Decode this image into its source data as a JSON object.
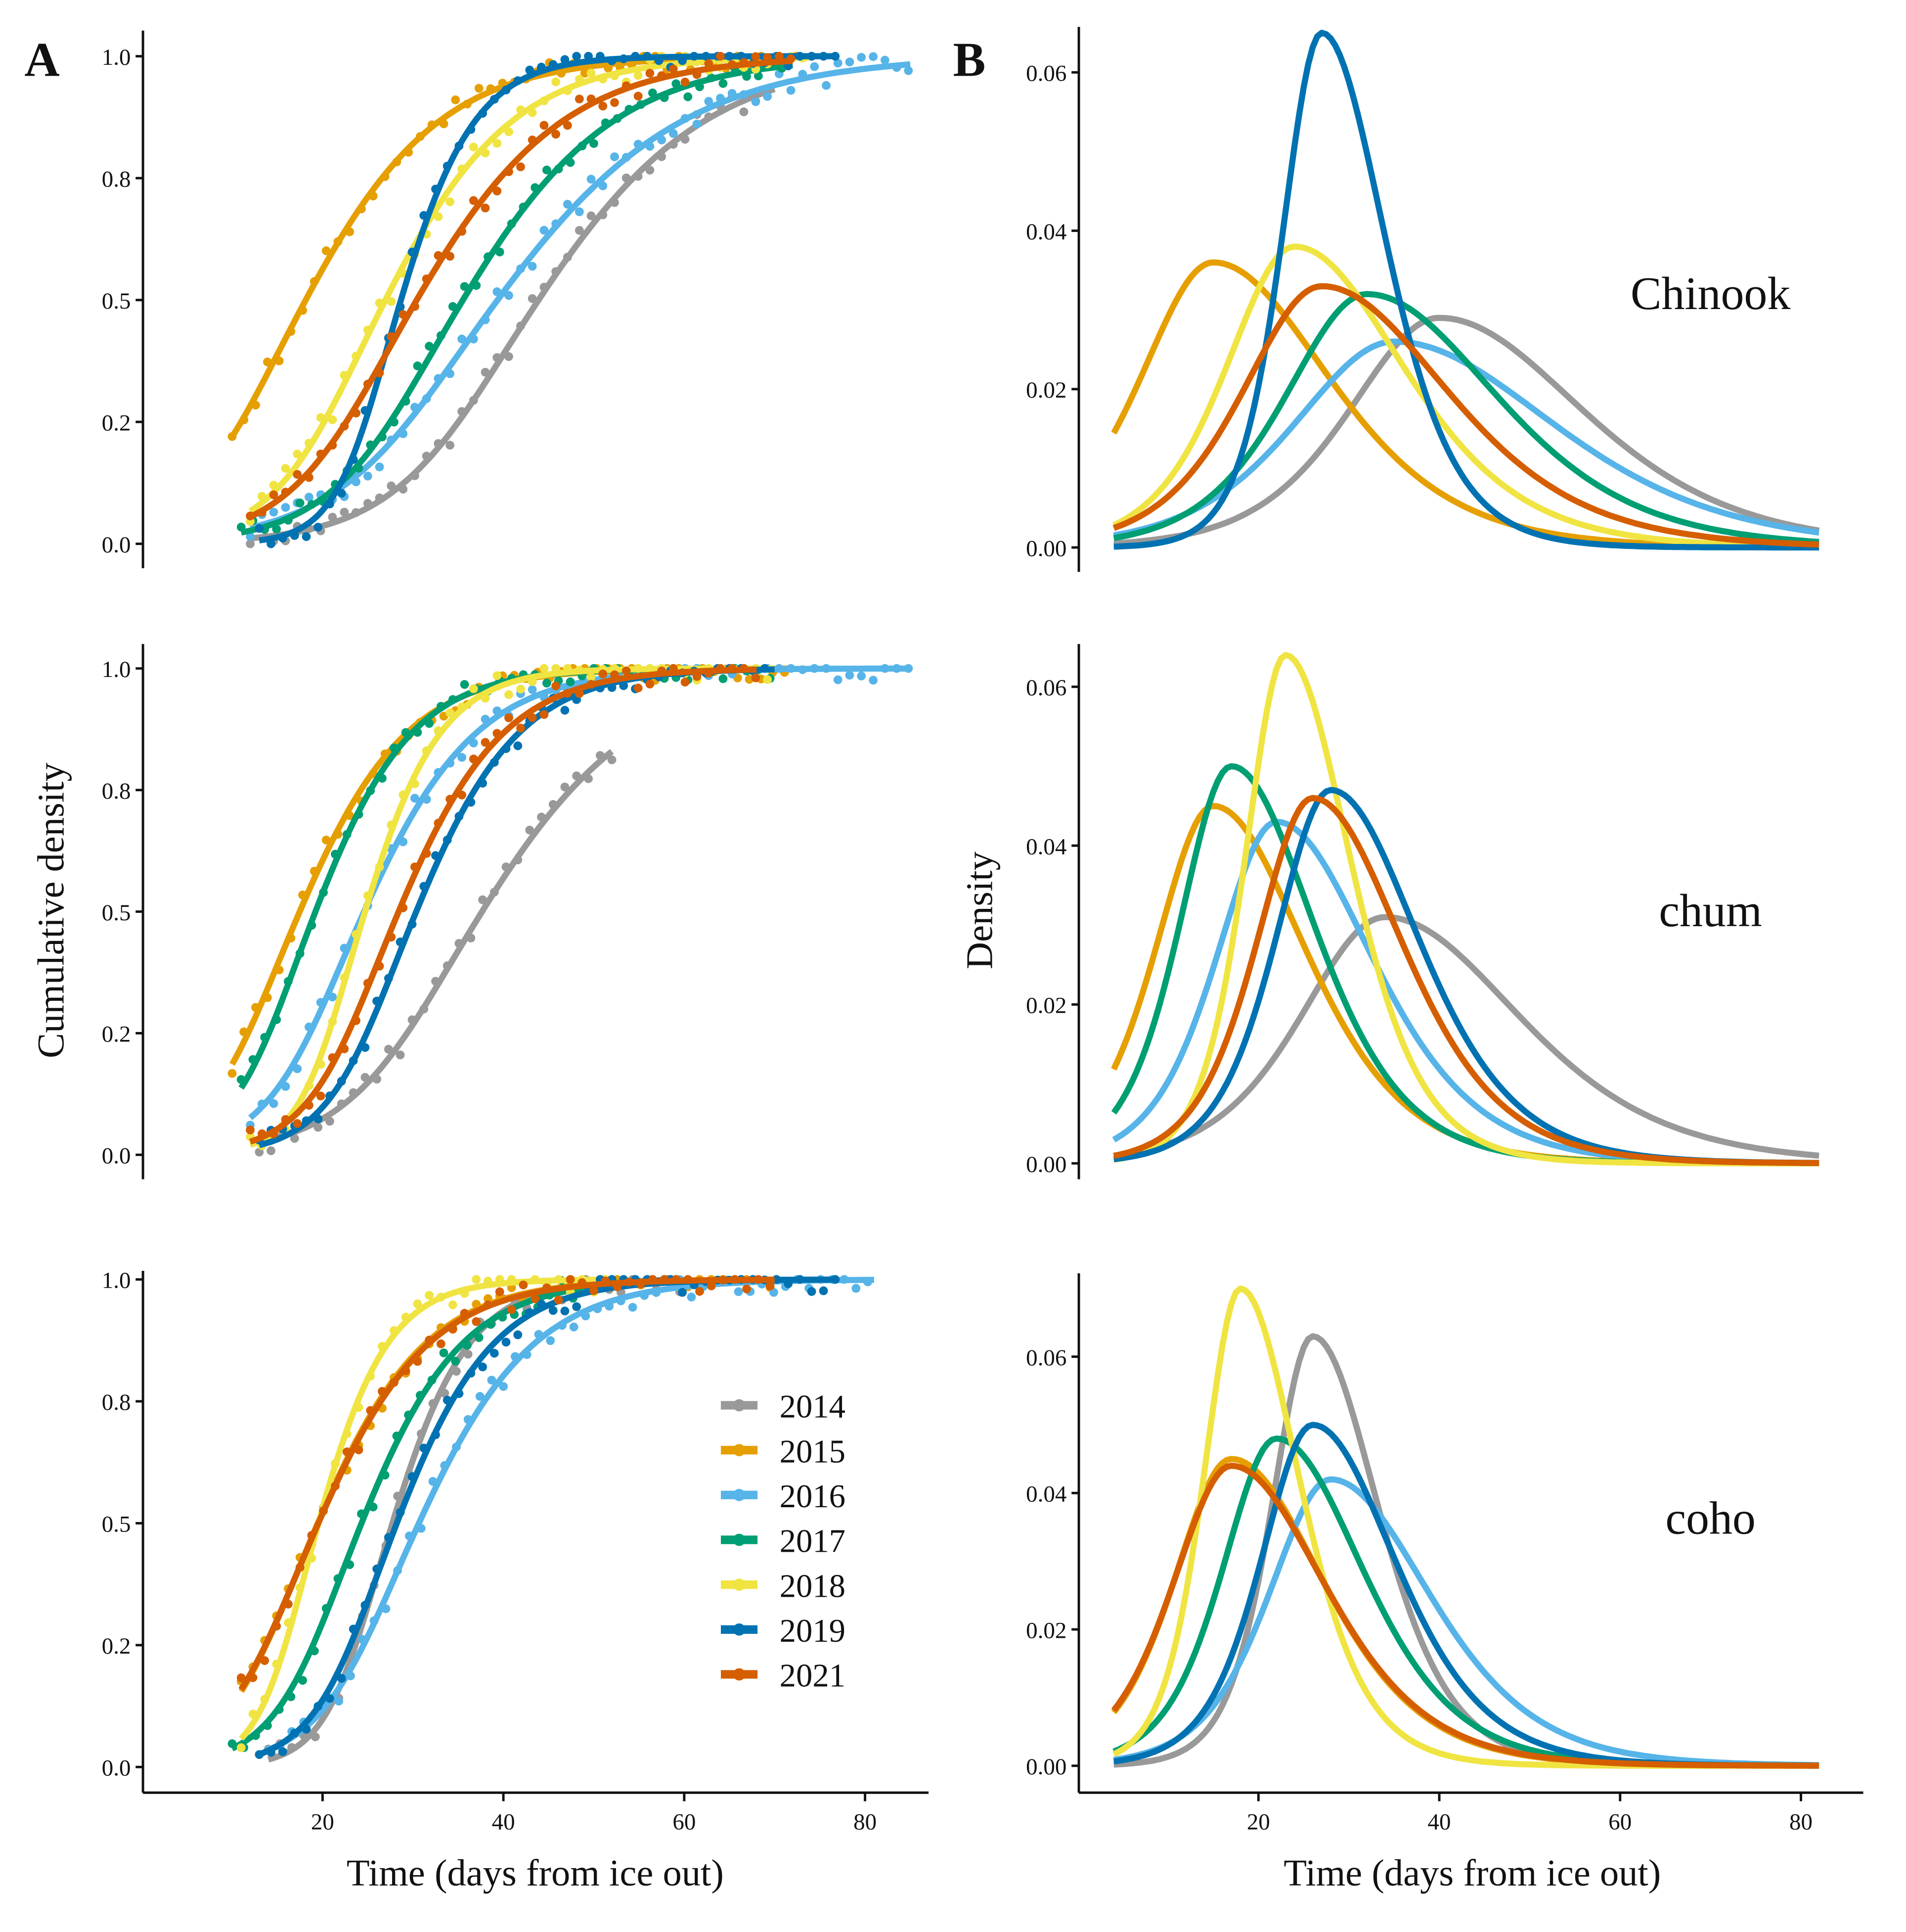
{
  "chart_data": {
    "type": "line",
    "colors": {
      "2014": "#999999",
      "2015": "#E69F00",
      "2016": "#56B4E9",
      "2017": "#009E73",
      "2018": "#F0E442",
      "2019": "#0072B2",
      "2021": "#D55E00"
    },
    "series_names": [
      "2014",
      "2015",
      "2016",
      "2017",
      "2018",
      "2019",
      "2021"
    ],
    "panel_letters": {
      "A": "A",
      "B": "B"
    },
    "panelA": {
      "ylabel": "Cumulative density",
      "xlabel": "Time (days from ice out)",
      "xticks": [
        "20",
        "40",
        "60",
        "80"
      ],
      "xtick_values": [
        20,
        40,
        60,
        80
      ],
      "yticks": [
        "0.0",
        "0.2",
        "0.5",
        "0.8",
        "1.0"
      ],
      "ytick_values": [
        0,
        0.25,
        0.5,
        0.75,
        1.0
      ],
      "ylim": [
        0,
        1
      ],
      "xlim": [
        0,
        87
      ]
    },
    "panelB": {
      "ylabel": "Density",
      "xlabel": "Time (days from ice out)",
      "xticks": [
        "20",
        "40",
        "60",
        "80"
      ],
      "xtick_values": [
        20,
        40,
        60,
        80
      ],
      "yticks": [
        "0.00",
        "0.02",
        "0.04",
        "0.06"
      ],
      "ytick_values": [
        0,
        0.02,
        0.04,
        0.06
      ],
      "xlim": [
        0,
        87
      ],
      "density_x_range": [
        4,
        82
      ]
    },
    "legend": {
      "placement": "bottom-right of panel A coho",
      "entries": [
        "2014",
        "2015",
        "2016",
        "2017",
        "2018",
        "2019",
        "2021"
      ]
    },
    "species": [
      {
        "name": "Chinook",
        "series": [
          {
            "year": "2014",
            "mode": 40,
            "peak": 0.029,
            "obs_range": [
              12,
              70
            ]
          },
          {
            "year": "2015",
            "mode": 15,
            "peak": 0.036,
            "obs_range": [
              10,
              73
            ]
          },
          {
            "year": "2016",
            "mode": 35,
            "peak": 0.026,
            "obs_range": [
              12,
              85
            ]
          },
          {
            "year": "2017",
            "mode": 32,
            "peak": 0.032,
            "obs_range": [
              11,
              72
            ]
          },
          {
            "year": "2018",
            "mode": 24,
            "peak": 0.038,
            "obs_range": [
              12,
              74
            ]
          },
          {
            "year": "2019",
            "mode": 27,
            "peak": 0.065,
            "obs_range": [
              13,
              77
            ]
          },
          {
            "year": "2021",
            "mode": 27,
            "peak": 0.033,
            "obs_range": [
              12,
              72
            ]
          }
        ]
      },
      {
        "name": "chum",
        "series": [
          {
            "year": "2014",
            "mode": 34,
            "peak": 0.031,
            "obs_range": [
              13,
              52
            ]
          },
          {
            "year": "2015",
            "mode": 15,
            "peak": 0.045,
            "obs_range": [
              10,
              72
            ]
          },
          {
            "year": "2016",
            "mode": 22,
            "peak": 0.043,
            "obs_range": [
              12,
              85
            ]
          },
          {
            "year": "2017",
            "mode": 17,
            "peak": 0.05,
            "obs_range": [
              11,
              70
            ]
          },
          {
            "year": "2018",
            "mode": 23,
            "peak": 0.064,
            "obs_range": [
              12,
              70
            ]
          },
          {
            "year": "2019",
            "mode": 28,
            "peak": 0.047,
            "obs_range": [
              13,
              70
            ]
          },
          {
            "year": "2021",
            "mode": 26,
            "peak": 0.046,
            "obs_range": [
              12,
              68
            ]
          }
        ]
      },
      {
        "name": "coho",
        "series": [
          {
            "year": "2014",
            "mode": 26,
            "peak": 0.063,
            "obs_range": [
              14,
              60
            ]
          },
          {
            "year": "2015",
            "mode": 17,
            "peak": 0.045,
            "obs_range": [
              11,
              70
            ]
          },
          {
            "year": "2016",
            "mode": 28,
            "peak": 0.042,
            "obs_range": [
              14,
              81
            ]
          },
          {
            "year": "2017",
            "mode": 22,
            "peak": 0.048,
            "obs_range": [
              10,
              51
            ]
          },
          {
            "year": "2018",
            "mode": 18,
            "peak": 0.07,
            "obs_range": [
              11,
              52
            ]
          },
          {
            "year": "2019",
            "mode": 26,
            "peak": 0.05,
            "obs_range": [
              13,
              77
            ]
          },
          {
            "year": "2021",
            "mode": 17,
            "peak": 0.044,
            "obs_range": [
              11,
              70
            ]
          }
        ]
      }
    ]
  }
}
